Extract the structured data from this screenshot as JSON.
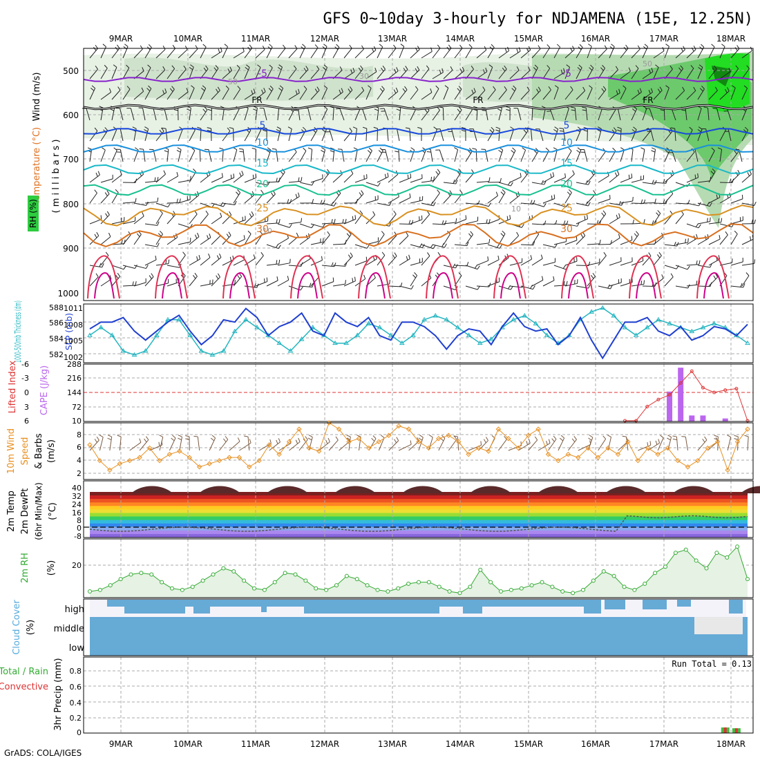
{
  "title": "GFS 0~10day 3-hourly for NDJAMENA (15E, 12.25N)",
  "credit": "GrADS: COLA/IGES",
  "run_total": "Run Total = 0.13",
  "dates": [
    "9MAR",
    "10MAR",
    "11MAR",
    "12MAR",
    "13MAR",
    "14MAR",
    "15MAR",
    "16MAR",
    "17MAR",
    "18MAR"
  ],
  "colors": {
    "rh_green": "#2ecc40",
    "temp_orange": "#e08a1a",
    "temp_red": "#e02040",
    "slp": "#1f3fd0",
    "thick": "#22b5c0",
    "cape": "#bb66ee",
    "li": "#dd3333",
    "wind": "#e89020",
    "rh2m": "#33aa33",
    "cloud": "#66aad6",
    "precip_green": "#44bb44"
  },
  "panels": {
    "upper": {
      "ylabel_wind": "Wind (m/s)",
      "ylabel_temp": "Temperature (°C)",
      "ylabel_rh": "RH (%)",
      "ylabel_mb": "( m i l l i b a r s )",
      "ticks": [
        "500",
        "600",
        "700",
        "800",
        "900",
        "1000"
      ],
      "fr_label": "FR",
      "contours": [
        {
          "label": "-5",
          "color": "#8822cc"
        },
        {
          "label": "5",
          "color": "#1848dd"
        },
        {
          "label": "10",
          "color": "#1890dd"
        },
        {
          "label": "15",
          "color": "#18b8c8"
        },
        {
          "label": "20",
          "color": "#18c090"
        },
        {
          "label": "25",
          "color": "#d89020"
        },
        {
          "label": "30",
          "color": "#d87020"
        }
      ],
      "rh_labels": [
        "50",
        "30",
        "10"
      ]
    },
    "slp": {
      "ylabel_thick": "1000-500mb Thickness (dm)",
      "ylabel_slp": "SLP (mb)",
      "thick_ticks": [
        "588",
        "586",
        "584",
        "582"
      ],
      "slp_ticks": [
        "1011",
        "1008",
        "1005",
        "1002"
      ]
    },
    "cape": {
      "ylabel_li": "Lifted Index",
      "ylabel_cape": "CAPE (J/kg)",
      "li_ticks": [
        "-6",
        "-3",
        "0",
        "3",
        "6"
      ],
      "cape_ticks": [
        "288",
        "216",
        "144",
        "72",
        "10"
      ]
    },
    "wind10": {
      "ylabel_a": "10m Wind",
      "ylabel_b": "Speed",
      "ylabel_c": "& Barbs",
      "unit": "(m/s)",
      "ticks": [
        "8",
        "6",
        "4",
        "2"
      ]
    },
    "temp2m": {
      "ylabel_a": "2m Temp",
      "ylabel_b": "2m DewPt",
      "ylabel_c": "(6hr Min/Max)",
      "unit": "(°C)",
      "ticks": [
        "40",
        "32",
        "24",
        "16",
        "8",
        "0",
        "-8"
      ]
    },
    "rh2m": {
      "ylabel": "2m RH",
      "unit": "(%)",
      "ticks": [
        "20"
      ]
    },
    "cloud": {
      "ylabel": "Cloud Cover",
      "unit": "(%)",
      "levels": [
        "high",
        "middle",
        "low"
      ]
    },
    "precip": {
      "ylabel_a": "Total / Rain",
      "ylabel_b": "Convective",
      "ylabel_c": "3hr Precip (mm)",
      "ticks": [
        "0.8",
        "0.6",
        "0.4",
        "0.2",
        "0"
      ]
    }
  },
  "chart_data": [
    {
      "type": "line",
      "title": "SLP (mb)",
      "x_unit": "days since 9MAR 00Z",
      "series": [
        {
          "name": "SLP (mb)",
          "values": [
            1006.5,
            1008,
            1008,
            1009,
            1006,
            1004,
            1006,
            1008,
            1009.5,
            1006,
            1003,
            1005,
            1008.5,
            1008,
            1011,
            1009,
            1005,
            1007,
            1008,
            1010,
            1006,
            1005,
            1010,
            1008,
            1007,
            1009,
            1005,
            1004,
            1008,
            1008,
            1007,
            1005,
            1002,
            1005,
            1006.5,
            1006,
            1003,
            1007,
            1010,
            1007,
            1006,
            1006.5,
            1003,
            1005,
            1009,
            1004,
            1000,
            1004,
            1008,
            1008,
            1009,
            1006,
            1005,
            1007,
            1004,
            1005,
            1007,
            1006.5,
            1005,
            1007.5
          ]
        }
      ]
    },
    {
      "type": "line",
      "title": "1000-500mb Thickness (dm)",
      "series": [
        {
          "name": "Thickness (dm)",
          "values": [
            584,
            585,
            584,
            582,
            581.5,
            582,
            584,
            586,
            586,
            584,
            582,
            581.5,
            582,
            584.5,
            586,
            585,
            584,
            583,
            582,
            583.5,
            585,
            584,
            583,
            583,
            584,
            585.5,
            585,
            584,
            583,
            584,
            586,
            586.5,
            586,
            585,
            584,
            583,
            583.5,
            585,
            586,
            586.5,
            585.5,
            584,
            583,
            584,
            586,
            587,
            587.5,
            586.5,
            585,
            584,
            585,
            586,
            585.5,
            585,
            584.5,
            585,
            585.5,
            585,
            584,
            583
          ]
        }
      ]
    },
    {
      "type": "line",
      "title": "Lifted Index",
      "series": [
        {
          "name": "Lifted Index",
          "values": [
            6,
            6,
            6,
            6,
            6,
            6,
            6,
            6,
            6,
            6,
            6,
            6,
            6,
            5,
            6,
            6,
            6,
            6,
            5,
            6,
            6,
            6,
            6,
            6,
            6,
            6,
            6,
            6,
            6,
            6,
            6,
            6,
            6,
            6,
            6,
            5,
            6,
            6,
            6,
            6,
            6,
            6,
            6,
            6,
            4,
            3,
            6,
            6,
            6,
            6,
            3,
            1.5,
            0.5,
            -2,
            -4.5,
            -1,
            0,
            -0.5,
            -0.8,
            6
          ]
        }
      ]
    },
    {
      "type": "bar",
      "title": "CAPE (J/kg)",
      "series": [
        {
          "name": "CAPE (J/kg)",
          "values": [
            0,
            0,
            0,
            0,
            0,
            0,
            0,
            0,
            0,
            0,
            0,
            0,
            0,
            0,
            0,
            0,
            0,
            0,
            0,
            0,
            0,
            0,
            0,
            0,
            0,
            0,
            0,
            0,
            0,
            0,
            0,
            0,
            0,
            0,
            0,
            0,
            0,
            0,
            0,
            0,
            0,
            0,
            0,
            0,
            0,
            0,
            0,
            0,
            0,
            0,
            0,
            0,
            150,
            270,
            30,
            30,
            0,
            15,
            0,
            0
          ]
        }
      ]
    },
    {
      "type": "line",
      "title": "10m Wind Speed (m/s)",
      "series": [
        {
          "name": "10m Wind Speed",
          "values": [
            5.5,
            3,
            1.5,
            2.5,
            3,
            3.5,
            5,
            3,
            4,
            4.5,
            3.5,
            2,
            2.5,
            3,
            3.5,
            3.5,
            2,
            3,
            5.5,
            4,
            6,
            8,
            5,
            4.5,
            9,
            8,
            6,
            6.5,
            5,
            6,
            7,
            8.5,
            8,
            6,
            5,
            6.5,
            7,
            6,
            4,
            5,
            4.5,
            8,
            6.5,
            5,
            7,
            8,
            4,
            3,
            4,
            3.5,
            5,
            3.5,
            5,
            4,
            6,
            3,
            5,
            4,
            5,
            3,
            2,
            3,
            5,
            6,
            1.5,
            6,
            8
          ]
        }
      ]
    },
    {
      "type": "line",
      "title": "2m RH (%)",
      "series": [
        {
          "name": "2m RH (%)",
          "values": [
            4,
            5,
            8,
            12,
            15,
            16,
            15,
            10,
            6,
            5,
            7,
            11,
            15,
            19,
            17,
            11,
            6,
            5,
            10,
            16,
            15,
            11,
            6,
            5,
            8,
            14,
            12,
            8,
            5,
            4,
            6,
            9,
            10,
            10,
            7,
            4,
            3,
            7,
            18,
            10,
            4,
            5,
            6,
            8,
            10,
            7,
            4,
            3,
            5,
            11,
            17,
            14,
            7,
            5,
            9,
            16,
            20,
            29,
            31,
            24,
            19,
            29,
            26,
            33,
            12
          ]
        }
      ]
    },
    {
      "type": "bar",
      "title": "3hr Precip (mm)",
      "series": [
        {
          "name": "Total",
          "values": [
            0,
            0,
            0,
            0,
            0,
            0,
            0,
            0,
            0,
            0,
            0,
            0,
            0,
            0,
            0,
            0,
            0,
            0,
            0,
            0,
            0,
            0,
            0,
            0,
            0,
            0,
            0,
            0,
            0,
            0,
            0,
            0,
            0,
            0,
            0,
            0,
            0,
            0,
            0,
            0,
            0,
            0,
            0,
            0,
            0,
            0,
            0,
            0,
            0,
            0,
            0,
            0,
            0,
            0,
            0,
            0,
            0,
            0.07,
            0.06,
            0
          ]
        }
      ]
    }
  ]
}
